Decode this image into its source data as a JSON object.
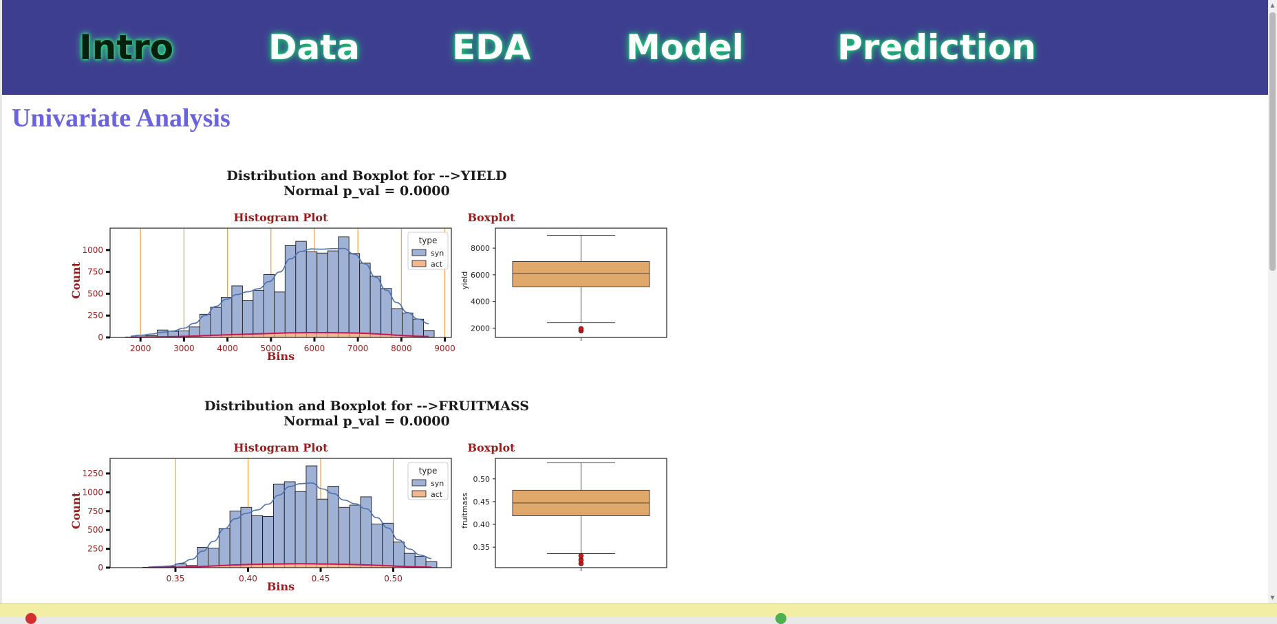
{
  "nav": {
    "tabs": [
      {
        "label": "Intro",
        "active": true
      },
      {
        "label": "Data",
        "active": false
      },
      {
        "label": "EDA",
        "active": false
      },
      {
        "label": "Model",
        "active": false
      },
      {
        "label": "Prediction",
        "active": false
      }
    ]
  },
  "page_title": "Univariate Analysis",
  "colors": {
    "nav_bg": "#3e3e90",
    "title": "#6a63e0",
    "plot_label": "#9b1c1c",
    "syn_fill": "#9fb1d4",
    "act_fill": "#f2b78f",
    "kde_syn": "#4c72b0",
    "kde_act": "#c2185b",
    "vline": "#f0a040",
    "box_fill": "#e1a86c",
    "outlier": "#d01616"
  },
  "chart_data": [
    {
      "type": "bar",
      "name": "yield",
      "title": "Distribution and Boxplot for -->YIELD",
      "subtitle": "Normal p_val = 0.0000",
      "histogram": {
        "title": "Histogram Plot",
        "xlabel": "Bins",
        "ylabel": "Count",
        "xlim": [
          1300,
          9150
        ],
        "ylim": [
          0,
          1250
        ],
        "xticks": [
          2000,
          3000,
          4000,
          5000,
          6000,
          7000,
          8000,
          9000
        ],
        "yticks": [
          0,
          250,
          500,
          750,
          1000
        ],
        "vlines": [
          2000,
          3000,
          4000,
          5000,
          6000,
          7000,
          8000,
          9000
        ],
        "bin_start": 1650,
        "bin_width": 245,
        "series": [
          {
            "name": "syn",
            "values": [
              5,
              25,
              20,
              85,
              70,
              75,
              120,
              265,
              345,
              460,
              590,
              420,
              540,
              720,
              520,
              1050,
              1100,
              980,
              965,
              990,
              1150,
              960,
              850,
              700,
              560,
              330,
              280,
              210,
              80
            ]
          },
          {
            "name": "act",
            "values": [
              1,
              2,
              4,
              7,
              10,
              12,
              15,
              20,
              25,
              30,
              35,
              38,
              40,
              45,
              50,
              55,
              55,
              55,
              55,
              55,
              55,
              52,
              48,
              42,
              35,
              25,
              18,
              12,
              6
            ]
          }
        ],
        "legend": {
          "title": "type",
          "placement": "top-right",
          "entries": [
            "syn",
            "act"
          ]
        }
      },
      "boxplot": {
        "title": "Boxplot",
        "ylabel": "yield",
        "ylim": [
          1300,
          9500
        ],
        "yticks": [
          2000,
          4000,
          6000,
          8000
        ],
        "whisker_low": 2400,
        "q1": 5100,
        "median": 6100,
        "q3": 7000,
        "whisker_high": 8950,
        "outliers": [
          1800,
          1950
        ]
      }
    },
    {
      "type": "bar",
      "name": "fruitmass",
      "title": "Distribution and Boxplot for -->FRUITMASS",
      "subtitle": "Normal p_val = 0.0000",
      "histogram": {
        "title": "Histogram Plot",
        "xlabel": "Bins",
        "ylabel": "Count",
        "xlim": [
          0.305,
          0.54
        ],
        "ylim": [
          0,
          1450
        ],
        "xticks": [
          0.35,
          0.4,
          0.45,
          0.5
        ],
        "yticks": [
          0,
          250,
          500,
          750,
          1000,
          1250
        ],
        "vlines": [
          0.35,
          0.4,
          0.45,
          0.5
        ],
        "bin_start": 0.3275,
        "bin_width": 0.0075,
        "series": [
          {
            "name": "syn",
            "values": [
              5,
              10,
              15,
              50,
              30,
              270,
              260,
              520,
              750,
              800,
              690,
              680,
              1110,
              1140,
              1010,
              1350,
              910,
              1080,
              800,
              830,
              940,
              580,
              590,
              340,
              190,
              150,
              80
            ]
          },
          {
            "name": "act",
            "values": [
              1,
              2,
              3,
              5,
              8,
              15,
              22,
              30,
              38,
              42,
              45,
              47,
              50,
              52,
              52,
              52,
              50,
              48,
              45,
              42,
              38,
              32,
              25,
              18,
              12,
              8,
              4
            ]
          }
        ],
        "legend": {
          "title": "type",
          "placement": "top-right",
          "entries": [
            "syn",
            "act"
          ]
        }
      },
      "boxplot": {
        "title": "Boxplot",
        "ylabel": "fruitmass",
        "ylim": [
          0.305,
          0.545
        ],
        "yticks": [
          0.35,
          0.4,
          0.45,
          0.5
        ],
        "whisker_low": 0.336,
        "q1": 0.419,
        "median": 0.447,
        "q3": 0.475,
        "whisker_high": 0.536,
        "outliers": [
          0.314,
          0.322,
          0.331
        ]
      }
    }
  ]
}
